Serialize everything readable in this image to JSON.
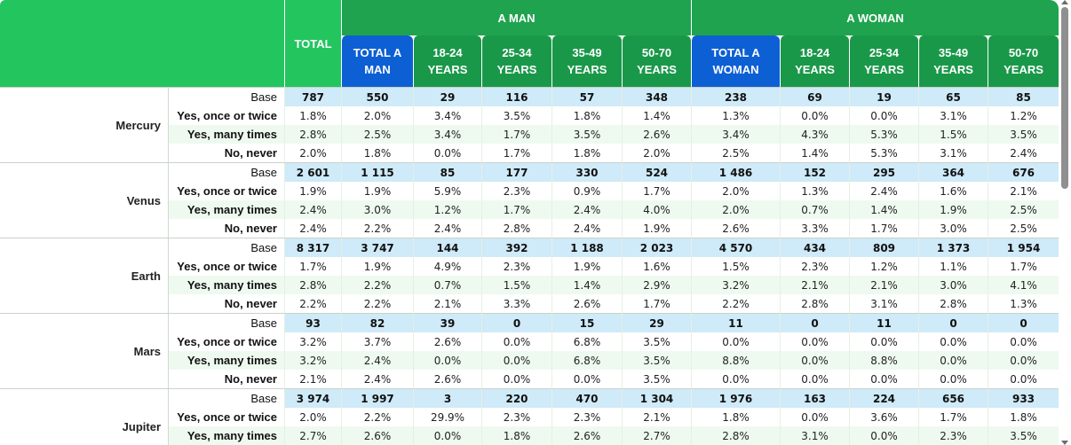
{
  "headers": {
    "total": "TOTAL",
    "groups": [
      "A MAN",
      "A WOMAN"
    ],
    "subcols": [
      "TOTAL A MAN",
      "18-24 YEARS",
      "25-34 YEARS",
      "35-49 YEARS",
      "50-70 YEARS",
      "TOTAL A WOMAN",
      "18-24 YEARS",
      "25-34 YEARS",
      "35-49 YEARS",
      "50-70 YEARS"
    ]
  },
  "row_labels": [
    "Base",
    "Yes, once or twice",
    "Yes, many times",
    "No, never"
  ],
  "planets": [
    {
      "name": "Mercury",
      "rows": [
        [
          "787",
          "550",
          "29",
          "116",
          "57",
          "348",
          "238",
          "69",
          "19",
          "65",
          "85"
        ],
        [
          "1.8%",
          "2.0%",
          "3.4%",
          "3.5%",
          "1.8%",
          "1.4%",
          "1.3%",
          "0.0%",
          "0.0%",
          "3.1%",
          "1.2%"
        ],
        [
          "2.8%",
          "2.5%",
          "3.4%",
          "1.7%",
          "3.5%",
          "2.6%",
          "3.4%",
          "4.3%",
          "5.3%",
          "1.5%",
          "3.5%"
        ],
        [
          "2.0%",
          "1.8%",
          "0.0%",
          "1.7%",
          "1.8%",
          "2.0%",
          "2.5%",
          "1.4%",
          "5.3%",
          "3.1%",
          "2.4%"
        ]
      ]
    },
    {
      "name": "Venus",
      "rows": [
        [
          "2 601",
          "1 115",
          "85",
          "177",
          "330",
          "524",
          "1 486",
          "152",
          "295",
          "364",
          "676"
        ],
        [
          "1.9%",
          "1.9%",
          "5.9%",
          "2.3%",
          "0.9%",
          "1.7%",
          "2.0%",
          "1.3%",
          "2.4%",
          "1.6%",
          "2.1%"
        ],
        [
          "2.4%",
          "3.0%",
          "1.2%",
          "1.7%",
          "2.4%",
          "4.0%",
          "2.0%",
          "0.7%",
          "1.4%",
          "1.9%",
          "2.5%"
        ],
        [
          "2.4%",
          "2.2%",
          "2.4%",
          "2.8%",
          "2.4%",
          "1.9%",
          "2.6%",
          "3.3%",
          "1.7%",
          "3.0%",
          "2.5%"
        ]
      ]
    },
    {
      "name": "Earth",
      "rows": [
        [
          "8 317",
          "3 747",
          "144",
          "392",
          "1 188",
          "2 023",
          "4 570",
          "434",
          "809",
          "1 373",
          "1 954"
        ],
        [
          "1.7%",
          "1.9%",
          "4.9%",
          "2.3%",
          "1.9%",
          "1.6%",
          "1.5%",
          "2.3%",
          "1.2%",
          "1.1%",
          "1.7%"
        ],
        [
          "2.8%",
          "2.2%",
          "0.7%",
          "1.5%",
          "1.4%",
          "2.9%",
          "3.2%",
          "2.1%",
          "2.1%",
          "3.0%",
          "4.1%"
        ],
        [
          "2.2%",
          "2.2%",
          "2.1%",
          "3.3%",
          "2.6%",
          "1.7%",
          "2.2%",
          "2.8%",
          "3.1%",
          "2.8%",
          "1.3%"
        ]
      ]
    },
    {
      "name": "Mars",
      "rows": [
        [
          "93",
          "82",
          "39",
          "0",
          "15",
          "29",
          "11",
          "0",
          "11",
          "0",
          "0"
        ],
        [
          "3.2%",
          "3.7%",
          "2.6%",
          "0.0%",
          "6.8%",
          "3.5%",
          "0.0%",
          "0.0%",
          "0.0%",
          "0.0%",
          "0.0%"
        ],
        [
          "3.2%",
          "2.4%",
          "0.0%",
          "0.0%",
          "6.8%",
          "3.5%",
          "8.8%",
          "0.0%",
          "8.8%",
          "0.0%",
          "0.0%"
        ],
        [
          "2.1%",
          "2.4%",
          "2.6%",
          "0.0%",
          "0.0%",
          "3.5%",
          "0.0%",
          "0.0%",
          "0.0%",
          "0.0%",
          "0.0%"
        ]
      ]
    },
    {
      "name": "Jupiter",
      "rows": [
        [
          "3 974",
          "1 997",
          "3",
          "220",
          "470",
          "1 304",
          "1 976",
          "163",
          "224",
          "656",
          "933"
        ],
        [
          "2.0%",
          "2.2%",
          "29.9%",
          "2.3%",
          "2.3%",
          "2.1%",
          "1.8%",
          "0.0%",
          "3.6%",
          "1.7%",
          "1.8%"
        ],
        [
          "2.7%",
          "2.6%",
          "0.0%",
          "1.8%",
          "2.6%",
          "2.7%",
          "2.8%",
          "3.1%",
          "0.0%",
          "2.3%",
          "3.5%"
        ],
        [
          "",
          "",
          "",
          "",
          "",
          "",
          "",
          "",
          "",
          "",
          ""
        ]
      ]
    }
  ]
}
